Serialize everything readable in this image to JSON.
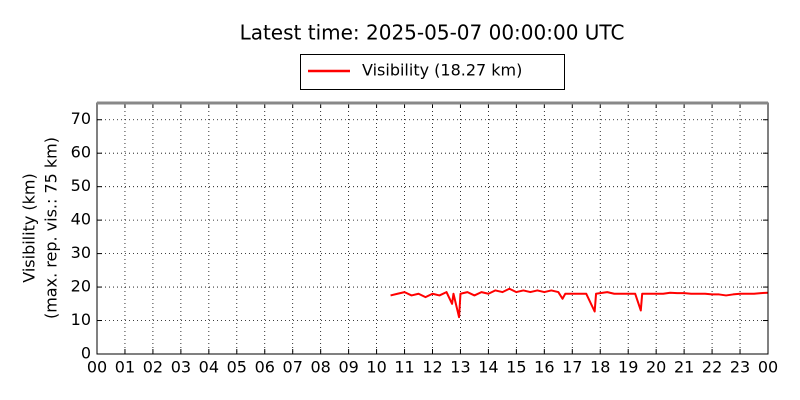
{
  "chart_data": {
    "type": "line",
    "title": "Latest time: 2025-05-07 00:00:00 UTC",
    "ylabel": [
      "Visibility (km)",
      "(max. rep. vis.: 75 km)"
    ],
    "series": [
      {
        "name": "Visibility (18.27 km)",
        "color": "#ff0000",
        "x": [
          10.5,
          10.75,
          11,
          11.25,
          11.5,
          11.75,
          12,
          12.25,
          12.5,
          12.7,
          12.75,
          12.95,
          13,
          13.25,
          13.5,
          13.75,
          14,
          14.25,
          14.5,
          14.75,
          15,
          15.25,
          15.5,
          15.75,
          16,
          16.25,
          16.5,
          16.65,
          16.75,
          17,
          17.25,
          17.5,
          17.8,
          17.85,
          18,
          18.25,
          18.5,
          18.75,
          19,
          19.25,
          19.45,
          19.5,
          19.75,
          20,
          20.25,
          20.5,
          20.75,
          21,
          21.25,
          21.5,
          21.75,
          22,
          22.25,
          22.5,
          22.75,
          23,
          23.25,
          23.5,
          23.75,
          24
        ],
        "values": [
          17.5,
          18,
          18.5,
          17.5,
          18,
          17,
          18,
          17.5,
          18.5,
          15,
          18,
          11,
          18,
          18.5,
          17.5,
          18.5,
          18,
          19,
          18.5,
          19.5,
          18.5,
          19,
          18.5,
          19,
          18.5,
          19,
          18.5,
          16.5,
          18,
          18,
          18,
          18,
          12.7,
          18,
          18.2,
          18.5,
          18,
          18,
          18,
          18,
          13,
          18,
          18,
          18,
          18,
          18.3,
          18.2,
          18.2,
          18,
          18,
          18,
          17.8,
          17.8,
          17.5,
          17.8,
          18,
          18,
          18,
          18.2,
          18.3
        ]
      }
    ],
    "xlim": [
      0,
      24
    ],
    "xticks": [
      {
        "value": 0,
        "label": "00"
      },
      {
        "value": 1,
        "label": "01"
      },
      {
        "value": 2,
        "label": "02"
      },
      {
        "value": 3,
        "label": "03"
      },
      {
        "value": 4,
        "label": "04"
      },
      {
        "value": 5,
        "label": "05"
      },
      {
        "value": 6,
        "label": "06"
      },
      {
        "value": 7,
        "label": "07"
      },
      {
        "value": 8,
        "label": "08"
      },
      {
        "value": 9,
        "label": "09"
      },
      {
        "value": 10,
        "label": "10"
      },
      {
        "value": 11,
        "label": "11"
      },
      {
        "value": 12,
        "label": "12"
      },
      {
        "value": 13,
        "label": "13"
      },
      {
        "value": 14,
        "label": "14"
      },
      {
        "value": 15,
        "label": "15"
      },
      {
        "value": 16,
        "label": "16"
      },
      {
        "value": 17,
        "label": "17"
      },
      {
        "value": 18,
        "label": "18"
      },
      {
        "value": 19,
        "label": "19"
      },
      {
        "value": 20,
        "label": "20"
      },
      {
        "value": 21,
        "label": "21"
      },
      {
        "value": 22,
        "label": "22"
      },
      {
        "value": 23,
        "label": "23"
      },
      {
        "value": 24,
        "label": "00"
      }
    ],
    "ylim": [
      0,
      75
    ],
    "yticks": [
      0,
      10,
      20,
      30,
      40,
      50,
      60,
      70
    ],
    "grid": true,
    "legend": "top"
  }
}
